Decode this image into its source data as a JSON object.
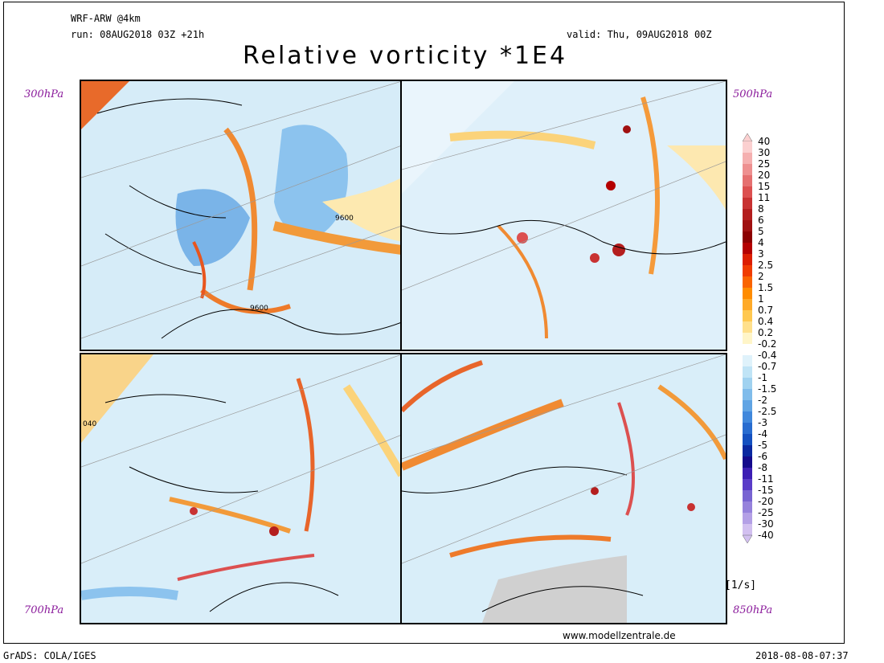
{
  "header": {
    "model": "WRF-ARW @4km",
    "run": "run: 08AUG2018 03Z +21h",
    "valid": "valid: Thu, 09AUG2018 00Z",
    "title": "Relative vorticity *1E4"
  },
  "levels": {
    "top_left": "300hPa",
    "top_right": "500hPa",
    "bottom_left": "700hPa",
    "bottom_right": "850hPa"
  },
  "contour_labels": {
    "p300_a": "9600",
    "p300_b": "9600",
    "p700_a": "040"
  },
  "colorbar": {
    "unit": "[1/s]",
    "labels": [
      "40",
      "30",
      "25",
      "20",
      "15",
      "11",
      "8",
      "6",
      "5",
      "4",
      "3",
      "2.5",
      "2",
      "1.5",
      "1",
      "0.7",
      "0.4",
      "0.2",
      "-0.2",
      "-0.4",
      "-0.7",
      "-1",
      "-1.5",
      "-2",
      "-2.5",
      "-3",
      "-4",
      "-5",
      "-6",
      "-8",
      "-11",
      "-15",
      "-20",
      "-25",
      "-30",
      "-40"
    ],
    "colors": [
      "#fbd0d0",
      "#f5b0b0",
      "#ee9090",
      "#e57070",
      "#dc5050",
      "#c83232",
      "#b41e1e",
      "#a01010",
      "#8c0000",
      "#b40000",
      "#dc1e00",
      "#f03c00",
      "#fa6400",
      "#ff8c00",
      "#ffaa28",
      "#ffc850",
      "#ffe08c",
      "#fff5c8",
      "#ffffff",
      "#dff2fb",
      "#c0e4f6",
      "#a0d2f0",
      "#80bceb",
      "#60a4e4",
      "#4088dc",
      "#286cd0",
      "#1450c0",
      "#0a28a0",
      "#140a8c",
      "#3c1eb4",
      "#5a3cc8",
      "#7864d2",
      "#9682dc",
      "#b4a0e6",
      "#d2c0f0"
    ]
  },
  "footer": {
    "left": "GrADS: COLA/IGES",
    "site": "www.modellzentrale.de",
    "timestamp": "2018-08-08-07:37"
  }
}
